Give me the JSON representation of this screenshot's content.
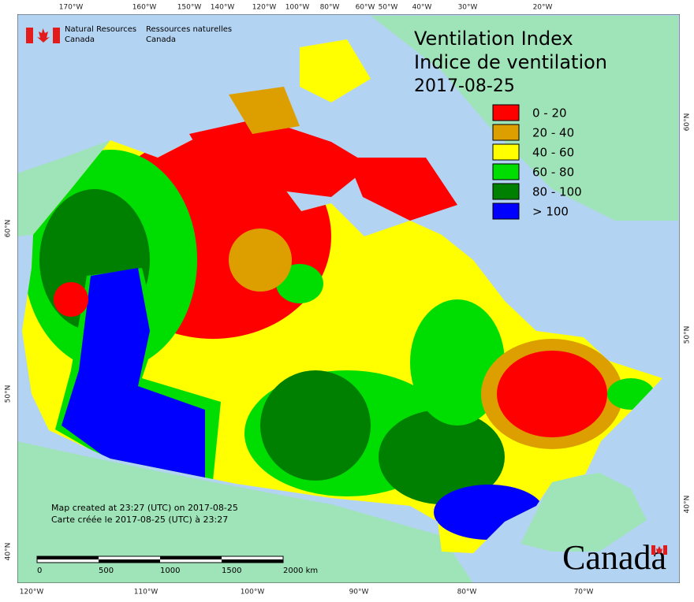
{
  "title": {
    "line1": "Ventilation Index",
    "line2": "Indice de ventilation",
    "date": "2017-08-25"
  },
  "agency": {
    "en": [
      "Natural Resources",
      "Canada"
    ],
    "fr": [
      "Ressources naturelles",
      "Canada"
    ]
  },
  "legend": [
    {
      "label": "0 - 20",
      "color": "#ff0000"
    },
    {
      "label": "20 - 40",
      "color": "#dd9f00"
    },
    {
      "label": "40 - 60",
      "color": "#ffff00"
    },
    {
      "label": "60 - 80",
      "color": "#00dd00"
    },
    {
      "label": "80 - 100",
      "color": "#008000"
    },
    {
      "label": "> 100",
      "color": "#0000ff"
    }
  ],
  "notes": [
    "Map created at 23:27 (UTC) on 2017-08-25",
    "Carte créée le 2017-08-25 (UTC) à 23:27"
  ],
  "scale_labels": [
    "0",
    "500",
    "1000",
    "1500",
    "2000 km"
  ],
  "wordmark": "Canada",
  "graticule": {
    "top": [
      "170°W",
      "160°W",
      "150°W",
      "140°W",
      "120°W",
      "100°W",
      "80°W",
      "60°W",
      "50°W",
      "40°W",
      "30°W",
      "20°W"
    ],
    "bottom": [
      "120°W",
      "110°W",
      "100°W",
      "90°W",
      "80°W",
      "70°W"
    ],
    "left": [
      "60°N",
      "50°N",
      "40°N"
    ],
    "right": [
      "60°N",
      "50°N",
      "40°N"
    ]
  }
}
